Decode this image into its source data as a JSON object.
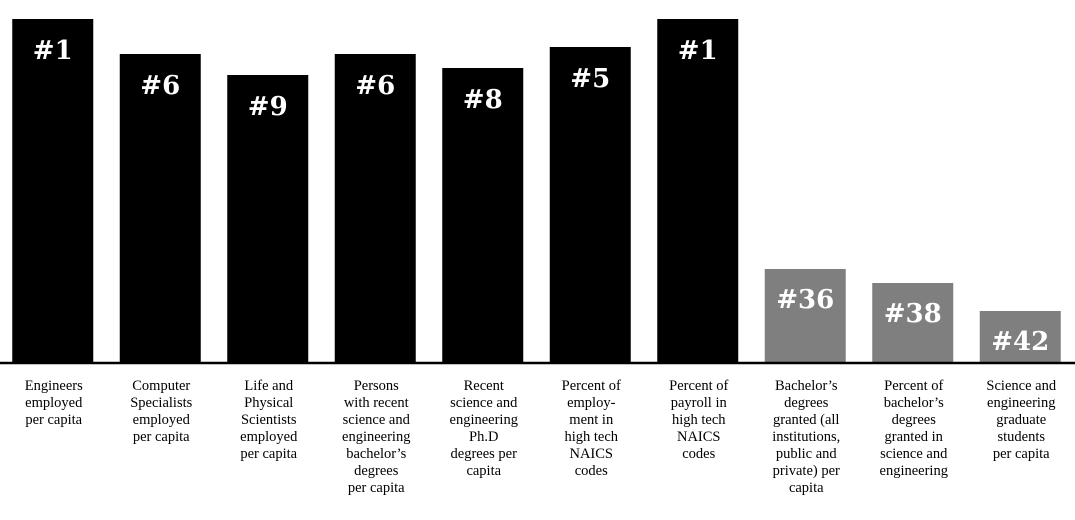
{
  "chart_data": {
    "type": "bar",
    "title": "",
    "xlabel": "",
    "ylabel": "",
    "colors": {
      "top_tier": "#000000",
      "lower_tier": "#7f7f7f",
      "baseline": "#000000"
    },
    "categories": [
      [
        "Engineers",
        "employed",
        "per capita"
      ],
      [
        "Computer",
        "Specialists",
        "employed",
        "per capita"
      ],
      [
        "Life and",
        "Physical",
        "Scientists",
        "employed",
        "per capita"
      ],
      [
        "Persons",
        "with recent",
        "science and",
        "engineering",
        "bachelor’s",
        "degrees",
        "per capita"
      ],
      [
        "Recent",
        "science and",
        "engineering",
        "Ph.D",
        "degrees per",
        "capita"
      ],
      [
        "Percent of",
        "employ-",
        "ment in",
        "high tech",
        "NAICS",
        "codes"
      ],
      [
        "Percent of",
        "payroll in",
        "high tech",
        "NAICS",
        "codes"
      ],
      [
        "Bachelor’s",
        "degrees",
        "granted (all",
        "institutions,",
        "public and",
        "private) per",
        "capita"
      ],
      [
        "Percent of",
        "bachelor’s",
        "degrees",
        "granted in",
        "science and",
        "engineering"
      ],
      [
        "Science and",
        "engineering",
        "graduate",
        "students",
        "per capita"
      ]
    ],
    "values": [
      1,
      6,
      9,
      6,
      8,
      5,
      1,
      36,
      38,
      42
    ],
    "rank_labels": [
      "#1",
      "#6",
      "#9",
      "#6",
      "#8",
      "#5",
      "#1",
      "#36",
      "#38",
      "#42"
    ],
    "bar_tier": [
      "top",
      "top",
      "top",
      "top",
      "top",
      "top",
      "top",
      "lower",
      "lower",
      "lower"
    ]
  }
}
